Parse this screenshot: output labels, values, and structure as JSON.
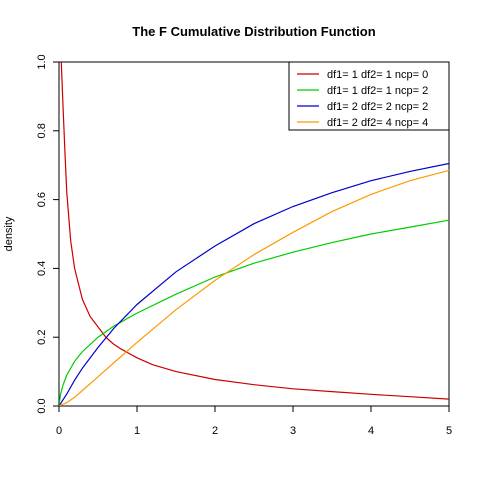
{
  "chart_data": {
    "type": "line",
    "title": "The F Cumulative Distribution Function",
    "xlabel": "",
    "ylabel": "density",
    "xlim": [
      0,
      5
    ],
    "ylim": [
      0,
      1
    ],
    "x_ticks": [
      "0",
      "1",
      "2",
      "3",
      "4",
      "5"
    ],
    "y_ticks": [
      "0.0",
      "0.2",
      "0.4",
      "0.6",
      "0.8",
      "1.0"
    ],
    "grid": false,
    "legend_position": "top-right",
    "series": [
      {
        "name": "df1= 1 df2= 1  ncp= 0",
        "color": "#cc0000",
        "x": [
          0.03,
          0.05,
          0.08,
          0.1,
          0.15,
          0.2,
          0.3,
          0.4,
          0.5,
          0.6,
          0.7,
          0.8,
          1.0,
          1.2,
          1.5,
          2.0,
          2.5,
          3.0,
          3.5,
          4.0,
          4.5,
          5.0
        ],
        "y": [
          1.0,
          0.88,
          0.72,
          0.62,
          0.48,
          0.4,
          0.31,
          0.26,
          0.23,
          0.2,
          0.18,
          0.165,
          0.14,
          0.12,
          0.1,
          0.077,
          0.062,
          0.05,
          0.042,
          0.034,
          0.027,
          0.02
        ]
      },
      {
        "name": "df1= 1 df2= 1  ncp= 2",
        "color": "#00cc00",
        "x": [
          0,
          0.02,
          0.05,
          0.1,
          0.2,
          0.3,
          0.5,
          0.7,
          1.0,
          1.5,
          2.0,
          2.5,
          3.0,
          3.5,
          4.0,
          4.5,
          5.0
        ],
        "y": [
          0,
          0.035,
          0.06,
          0.09,
          0.13,
          0.158,
          0.2,
          0.232,
          0.27,
          0.325,
          0.375,
          0.415,
          0.447,
          0.475,
          0.5,
          0.52,
          0.54
        ]
      },
      {
        "name": "df1= 2 df2= 2  ncp= 2",
        "color": "#0000cc",
        "x": [
          0,
          0.1,
          0.2,
          0.3,
          0.5,
          0.7,
          1.0,
          1.5,
          2.0,
          2.5,
          3.0,
          3.5,
          4.0,
          4.5,
          5.0
        ],
        "y": [
          0,
          0.035,
          0.075,
          0.11,
          0.17,
          0.225,
          0.295,
          0.39,
          0.465,
          0.53,
          0.58,
          0.62,
          0.655,
          0.682,
          0.705
        ]
      },
      {
        "name": "df1= 2 df2= 4  ncp= 4",
        "color": "#ff9900",
        "x": [
          0,
          0.1,
          0.2,
          0.3,
          0.5,
          0.7,
          1.0,
          1.5,
          2.0,
          2.5,
          3.0,
          3.5,
          4.0,
          4.5,
          5.0
        ],
        "y": [
          0,
          0.01,
          0.025,
          0.045,
          0.085,
          0.125,
          0.185,
          0.28,
          0.365,
          0.44,
          0.505,
          0.565,
          0.615,
          0.655,
          0.685
        ]
      }
    ]
  }
}
